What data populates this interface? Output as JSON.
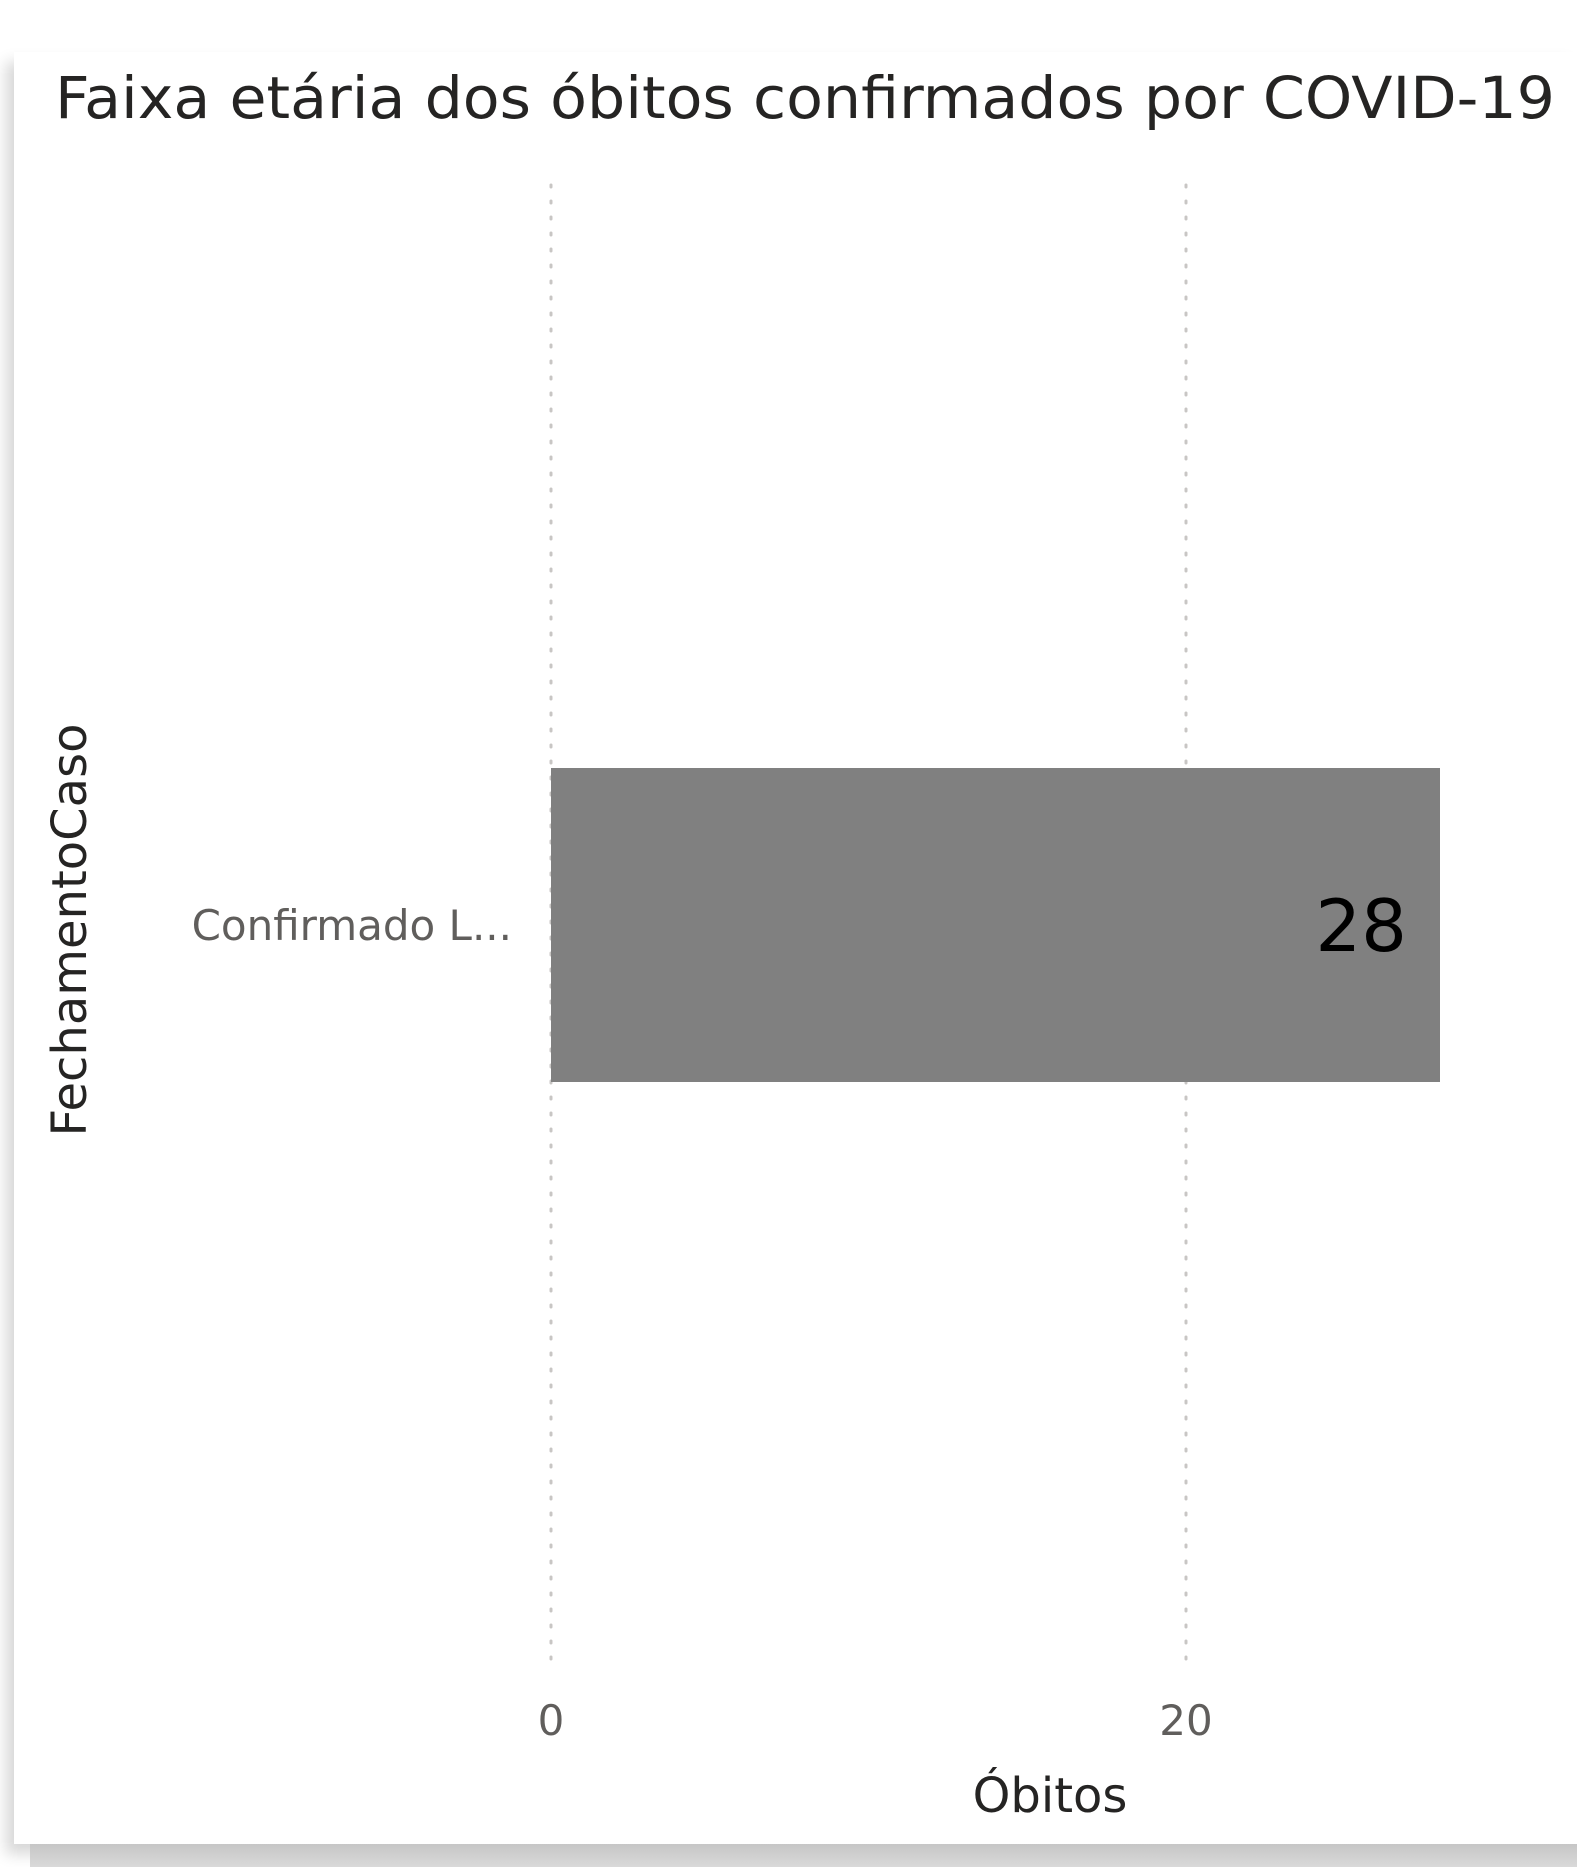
{
  "chart_data": {
    "type": "bar",
    "orientation": "horizontal",
    "title": "Faixa etária dos óbitos confirmados por COVID-19",
    "xlabel": "Óbitos",
    "ylabel": "FechamentoCaso",
    "categories": [
      "Confirmado L..."
    ],
    "values": [
      28
    ],
    "data_labels": [
      "28"
    ],
    "xlim": [
      0,
      30
    ],
    "x_ticks": [
      0,
      20
    ],
    "x_tick_labels": [
      "0",
      "20"
    ],
    "grid": true,
    "bar_color": "#808080"
  }
}
